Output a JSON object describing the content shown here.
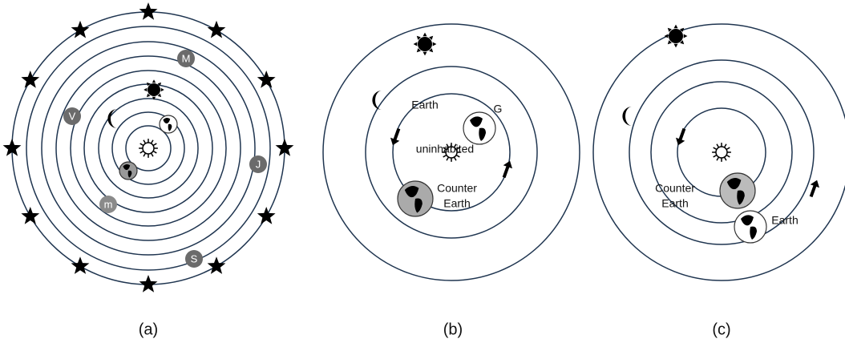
{
  "panels": [
    {
      "label": "(a)",
      "planets": [
        "M",
        "V",
        "J",
        "m",
        "S"
      ]
    },
    {
      "label": "(b)",
      "earth": "Earth",
      "g": "G",
      "note": "uninhabited",
      "counter_earth": [
        "Counter",
        "Earth"
      ]
    },
    {
      "label": "(c)",
      "counter_earth": [
        "Counter",
        "Earth"
      ],
      "earth": "Earth"
    }
  ]
}
